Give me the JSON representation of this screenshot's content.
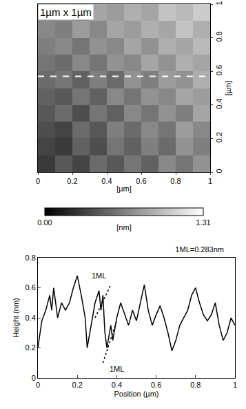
{
  "chart_data": [
    {
      "type": "heatmap",
      "title": "1µm x 1µm",
      "xlabel": "[µm]",
      "ylabel": "[µm]",
      "x": [
        0.05,
        0.15,
        0.25,
        0.35,
        0.45,
        0.55,
        0.65,
        0.75,
        0.85,
        0.95
      ],
      "y": [
        0.05,
        0.15,
        0.25,
        0.35,
        0.45,
        0.55,
        0.65,
        0.75,
        0.85,
        0.95
      ],
      "z": [
        [
          0.3,
          0.45,
          0.35,
          0.55,
          0.45,
          0.6,
          0.5,
          0.7,
          0.6,
          0.75
        ],
        [
          0.35,
          0.3,
          0.5,
          0.4,
          0.6,
          0.5,
          0.65,
          0.55,
          0.75,
          0.65
        ],
        [
          0.4,
          0.35,
          0.55,
          0.45,
          0.65,
          0.55,
          0.7,
          0.6,
          0.8,
          0.7
        ],
        [
          0.45,
          0.55,
          0.4,
          0.6,
          0.5,
          0.7,
          0.6,
          0.75,
          0.65,
          0.85
        ],
        [
          0.5,
          0.45,
          0.6,
          0.5,
          0.7,
          0.6,
          0.75,
          0.7,
          0.85,
          0.8
        ],
        [
          0.55,
          0.6,
          0.5,
          0.65,
          0.55,
          0.75,
          0.65,
          0.8,
          0.75,
          0.9
        ],
        [
          0.6,
          0.55,
          0.7,
          0.6,
          0.75,
          0.7,
          0.85,
          0.75,
          0.9,
          0.85
        ],
        [
          0.65,
          0.7,
          0.6,
          0.75,
          0.7,
          0.85,
          0.75,
          0.9,
          0.85,
          0.95
        ],
        [
          0.7,
          0.65,
          0.8,
          0.7,
          0.85,
          0.8,
          0.9,
          0.85,
          1.0,
          0.9
        ],
        [
          0.75,
          0.8,
          0.7,
          0.85,
          0.8,
          0.9,
          0.85,
          1.0,
          0.95,
          1.05
        ]
      ],
      "zlim": [
        0,
        1.31
      ],
      "zticks": [
        {
          "value": 0,
          "label": "0.00"
        },
        {
          "value": 1.31,
          "label": "1.31"
        }
      ],
      "colorbar_label": "[nm]",
      "line_y": 0.57,
      "xlim": [
        0,
        1
      ],
      "xticks": [
        0,
        0.2,
        0.4,
        0.6,
        0.8,
        1
      ],
      "ylim": [
        0,
        1
      ],
      "yticks": [
        0,
        0.2,
        0.4,
        0.6,
        0.8,
        1
      ]
    },
    {
      "type": "line",
      "title": "1ML=0.283nm",
      "xlabel": "Position (µm)",
      "ylabel": "Height (nm)",
      "color": "#000000",
      "x": [
        0,
        0.02,
        0.04,
        0.06,
        0.07,
        0.08,
        0.1,
        0.12,
        0.14,
        0.16,
        0.18,
        0.2,
        0.22,
        0.24,
        0.25,
        0.27,
        0.29,
        0.31,
        0.32,
        0.33,
        0.34,
        0.35,
        0.37,
        0.38,
        0.4,
        0.42,
        0.44,
        0.46,
        0.48,
        0.5,
        0.52,
        0.54,
        0.56,
        0.58,
        0.6,
        0.62,
        0.64,
        0.66,
        0.68,
        0.7,
        0.72,
        0.74,
        0.76,
        0.78,
        0.8,
        0.82,
        0.84,
        0.86,
        0.88,
        0.9,
        0.92,
        0.94,
        0.96,
        0.98,
        1.0
      ],
      "values": [
        0.2,
        0.38,
        0.45,
        0.55,
        0.45,
        0.6,
        0.4,
        0.5,
        0.45,
        0.5,
        0.6,
        0.68,
        0.55,
        0.4,
        0.2,
        0.35,
        0.5,
        0.58,
        0.45,
        0.55,
        0.3,
        0.2,
        0.35,
        0.25,
        0.4,
        0.5,
        0.42,
        0.35,
        0.45,
        0.38,
        0.5,
        0.62,
        0.45,
        0.35,
        0.42,
        0.48,
        0.4,
        0.3,
        0.18,
        0.25,
        0.35,
        0.4,
        0.45,
        0.55,
        0.6,
        0.5,
        0.42,
        0.38,
        0.42,
        0.5,
        0.35,
        0.25,
        0.3,
        0.4,
        0.35
      ],
      "annotations": [
        {
          "text": "1ML",
          "x": 0.31,
          "y": 0.68
        },
        {
          "text": "1ML",
          "x": 0.4,
          "y": 0.06
        }
      ],
      "guides": [
        {
          "x": [
            0.29,
            0.37
          ],
          "y": [
            0.4,
            0.62
          ]
        },
        {
          "x": [
            0.33,
            0.4
          ],
          "y": [
            0.1,
            0.38
          ]
        }
      ],
      "xlim": [
        0,
        1
      ],
      "xticks": [
        0,
        0.2,
        0.4,
        0.6,
        0.8,
        1
      ],
      "ylim": [
        0,
        0.8
      ],
      "yticks": [
        0,
        0.2,
        0.4,
        0.6,
        0.8
      ]
    }
  ]
}
